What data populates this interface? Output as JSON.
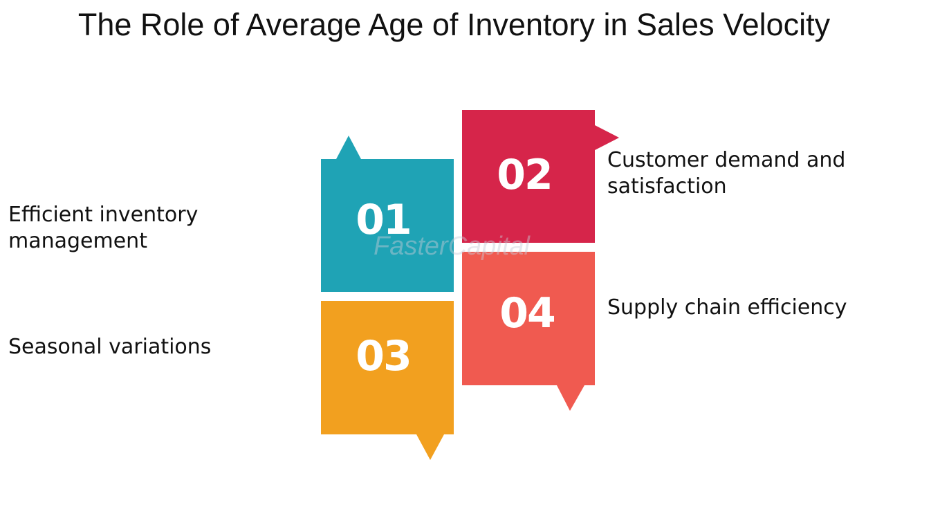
{
  "title": "The Role of Average Age of Inventory in Sales Velocity",
  "items": [
    {
      "number": "01",
      "line1": "Efficient inventory",
      "line2": "management",
      "color": "#1fa3b5"
    },
    {
      "number": "02",
      "line1": "Customer demand and",
      "line2": "satisfaction",
      "color": "#d6254a"
    },
    {
      "number": "03",
      "line1": "Seasonal variations",
      "line2": "",
      "color": "#f2a01f"
    },
    {
      "number": "04",
      "line1": "Supply chain efficiency",
      "line2": "",
      "color": "#f05a50"
    }
  ],
  "watermark": "FasterCapital"
}
